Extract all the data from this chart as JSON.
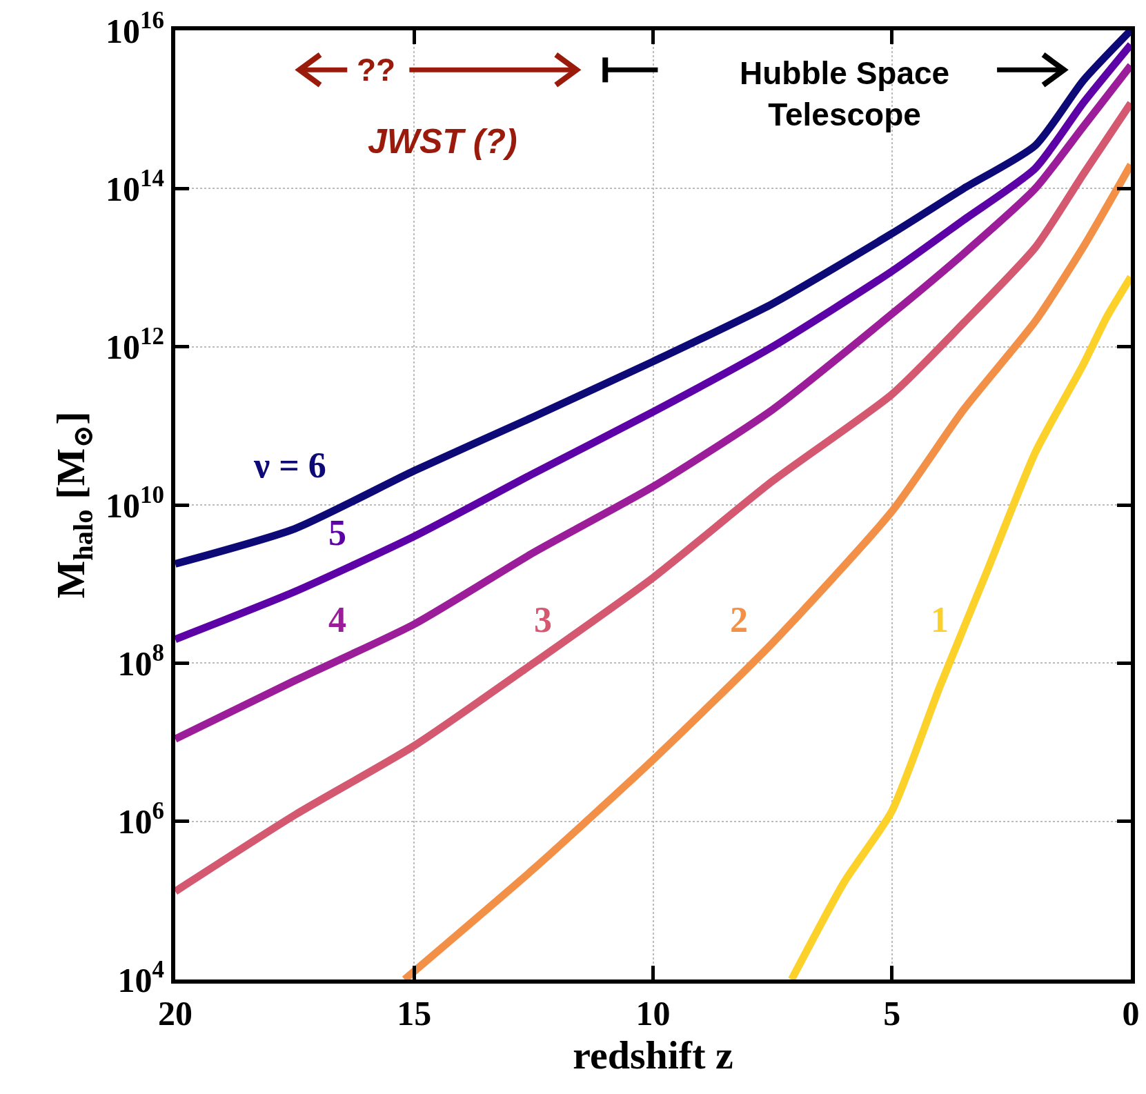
{
  "chart_data": {
    "type": "line",
    "xlabel": "redshift z",
    "ylabel": "M$_{halo}$ [M$_{⊙}$]",
    "log": "y",
    "grid": true,
    "legend": false,
    "marker": "none",
    "line_style": "solid",
    "xlim": [
      20,
      0
    ],
    "xticks": [
      20,
      15,
      10,
      5,
      0
    ],
    "ylim": [
      10000,
      1e+16
    ],
    "yticks": [
      {
        "value": 10000,
        "label": "10$^{4}$"
      },
      {
        "value": 1000000,
        "label": "10$^{6}$"
      },
      {
        "value": 100000000,
        "label": "10$^{8}$"
      },
      {
        "value": 10000000000,
        "label": "10$^{10}$"
      },
      {
        "value": 1000000000000,
        "label": "10$^{12}$"
      },
      {
        "value": 100000000000000,
        "label": "10$^{14}$"
      },
      {
        "value": 1e+16,
        "label": "10$^{16}$"
      }
    ],
    "annotations": [
      "??",
      "JWST (?)",
      "Hubble Space\nTelescope"
    ],
    "series": [
      {
        "name": "ν = 6",
        "color": "#0d0a78",
        "x": [
          20,
          17.5,
          15,
          12.5,
          10,
          7.5,
          5,
          3.5,
          2,
          1,
          0
        ],
        "values": [
          1800000000.0,
          5000000000.0,
          27000000000.0,
          130000000000.0,
          650000000000.0,
          3500000000000.0,
          27000000000000.0,
          100000000000000.0,
          350000000000000.0,
          2300000000000000.0,
          1e+16
        ]
      },
      {
        "name": "5",
        "color": "#5c02a6",
        "x": [
          20,
          17.5,
          15,
          12.5,
          10,
          7.5,
          5,
          3.5,
          2,
          1,
          0
        ],
        "values": [
          200000000.0,
          800000000.0,
          4000000000.0,
          25000000000.0,
          150000000000.0,
          1000000000000.0,
          9000000000000.0,
          40000000000000.0,
          180000000000000.0,
          1200000000000000.0,
          6600000000000000.0
        ]
      },
      {
        "name": "4",
        "color": "#9c1d9a",
        "x": [
          20,
          17.5,
          15,
          12.5,
          10,
          7.5,
          5,
          3.5,
          2,
          1,
          0
        ],
        "values": [
          11000000.0,
          60000000.0,
          310000000.0,
          2500000000.0,
          17000000000.0,
          160000000000.0,
          2600000000000.0,
          15000000000000.0,
          100000000000000.0,
          600000000000000.0,
          3600000000000000.0
        ]
      },
      {
        "name": "3",
        "color": "#d35870",
        "x": [
          20,
          17.5,
          15,
          12.5,
          10,
          7.5,
          5,
          3.5,
          2,
          1,
          0
        ],
        "values": [
          130000.0,
          1200000.0,
          9000000.0,
          100000000.0,
          1200000000.0,
          20000000000.0,
          250000000000.0,
          2000000000000.0,
          18000000000000.0,
          150000000000000.0,
          1200000000000000.0
        ]
      },
      {
        "name": "2",
        "color": "#f39048",
        "x": [
          15.2,
          12.5,
          10,
          7.5,
          5,
          3.5,
          2,
          1,
          0
        ],
        "values": [
          10000.0,
          250000.0,
          6000000.0,
          180000000.0,
          8300000000.0,
          160000000000.0,
          2100000000000.0,
          18000000000000.0,
          200000000000000.0
        ]
      },
      {
        "name": "1",
        "color": "#fcd12a",
        "x": [
          7.1,
          6,
          5,
          4,
          3,
          2,
          1,
          0.5,
          0
        ],
        "values": [
          10000.0,
          170000.0,
          1350000.0,
          50000000.0,
          1500000000.0,
          46000000000.0,
          590000000000.0,
          2400000000000.0,
          7600000000000.0
        ]
      }
    ]
  }
}
